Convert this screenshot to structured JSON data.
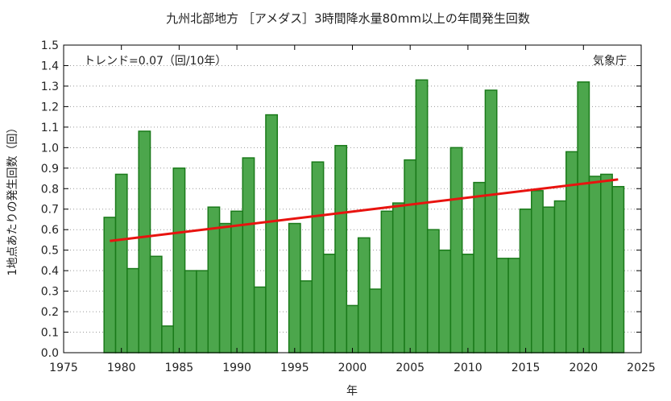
{
  "chart_data": {
    "type": "bar",
    "title": "九州北部地方 ［アメダス］3時間降水量80mm以上の年間発生回数",
    "xlabel": "年",
    "ylabel": "1地点あたりの発生回数（回）",
    "trend_label": "トレンド=0.07（回/10年）",
    "source_label": "気象庁",
    "xlim": [
      1975,
      2025
    ],
    "ylim": [
      0,
      1.5
    ],
    "x_ticks": [
      1975,
      1980,
      1985,
      1990,
      1995,
      2000,
      2005,
      2010,
      2015,
      2020,
      2025
    ],
    "y_ticks": [
      "0.0",
      "0.1",
      "0.2",
      "0.3",
      "0.4",
      "0.5",
      "0.6",
      "0.7",
      "0.8",
      "0.9",
      "1.0",
      "1.1",
      "1.2",
      "1.3",
      "1.4",
      "1.5"
    ],
    "categories": [
      1979,
      1980,
      1981,
      1982,
      1983,
      1984,
      1985,
      1986,
      1987,
      1988,
      1989,
      1990,
      1991,
      1992,
      1993,
      1994,
      1995,
      1996,
      1997,
      1998,
      1999,
      2000,
      2001,
      2002,
      2003,
      2004,
      2005,
      2006,
      2007,
      2008,
      2009,
      2010,
      2011,
      2012,
      2013,
      2014,
      2015,
      2016,
      2017,
      2018,
      2019,
      2020,
      2021,
      2022,
      2023
    ],
    "values": [
      0.66,
      0.87,
      0.41,
      1.08,
      0.47,
      0.13,
      0.9,
      0.4,
      0.4,
      0.71,
      0.63,
      0.69,
      0.95,
      0.32,
      1.16,
      0.0,
      0.63,
      0.35,
      0.93,
      0.48,
      1.01,
      0.23,
      0.56,
      0.31,
      0.69,
      0.73,
      0.94,
      1.33,
      0.6,
      0.5,
      1.0,
      0.48,
      0.83,
      1.28,
      0.46,
      0.46,
      0.7,
      0.79,
      0.71,
      0.74,
      0.98,
      1.32,
      0.86,
      0.87,
      0.81
    ],
    "trend_line": {
      "x": [
        1979,
        2023
      ],
      "y": [
        0.545,
        0.845
      ]
    },
    "colors": {
      "bar_fill": "#4ca64c",
      "bar_stroke": "#1a7a1a",
      "trend": "#e8130f",
      "axis": "#000000",
      "grid": "#999999"
    },
    "grid": true,
    "grid_style": "dotted-horizontal"
  }
}
